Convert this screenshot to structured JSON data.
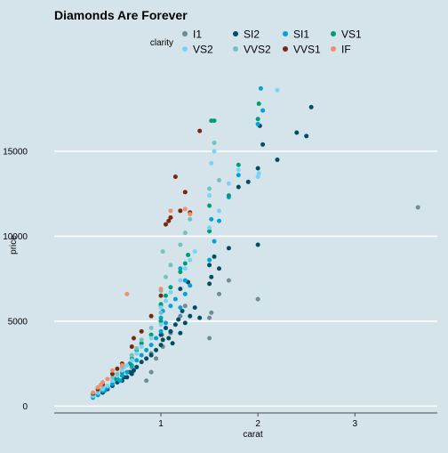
{
  "chart_data": {
    "type": "scatter",
    "title": "Diamonds Are Forever",
    "xlabel": "carat",
    "ylabel": "price",
    "xlim": [
      -0.1,
      3.85
    ],
    "ylim": [
      -400,
      19400
    ],
    "x_ticks": [
      1,
      2,
      3
    ],
    "y_ticks": [
      0,
      5000,
      10000,
      15000
    ],
    "grid": "horizontal major lines only",
    "legend_title": "clarity",
    "legend_position": "top",
    "series": [
      {
        "name": "I1",
        "color": "#6e8c95",
        "points": [
          [
            0.7,
            2300
          ],
          [
            0.8,
            3700
          ],
          [
            0.9,
            3100
          ],
          [
            0.95,
            2800
          ],
          [
            1.0,
            5000
          ],
          [
            1.0,
            5900
          ],
          [
            1.01,
            4200
          ],
          [
            1.02,
            3500
          ],
          [
            1.1,
            4300
          ],
          [
            1.2,
            5300
          ],
          [
            1.25,
            5900
          ],
          [
            1.5,
            4000
          ],
          [
            1.5,
            5200
          ],
          [
            1.52,
            5500
          ],
          [
            1.6,
            6600
          ],
          [
            1.7,
            7400
          ],
          [
            2.0,
            6300
          ],
          [
            3.65,
            11700
          ],
          [
            0.85,
            1500
          ],
          [
            0.9,
            2000
          ]
        ]
      },
      {
        "name": "SI2",
        "color": "#014d64",
        "points": [
          [
            0.3,
            600
          ],
          [
            0.35,
            700
          ],
          [
            0.4,
            800
          ],
          [
            0.45,
            1000
          ],
          [
            0.5,
            1200
          ],
          [
            0.55,
            1400
          ],
          [
            0.6,
            1500
          ],
          [
            0.65,
            1700
          ],
          [
            0.7,
            1900
          ],
          [
            0.72,
            2100
          ],
          [
            0.75,
            2300
          ],
          [
            0.8,
            2600
          ],
          [
            0.85,
            2800
          ],
          [
            0.9,
            3000
          ],
          [
            0.95,
            3300
          ],
          [
            1.0,
            3600
          ],
          [
            1.0,
            4200
          ],
          [
            1.02,
            3900
          ],
          [
            1.05,
            4600
          ],
          [
            1.08,
            4000
          ],
          [
            1.1,
            4400
          ],
          [
            1.12,
            3700
          ],
          [
            1.15,
            4800
          ],
          [
            1.18,
            5100
          ],
          [
            1.2,
            4300
          ],
          [
            1.22,
            5600
          ],
          [
            1.25,
            4900
          ],
          [
            1.3,
            5300
          ],
          [
            1.35,
            5800
          ],
          [
            1.5,
            7200
          ],
          [
            1.5,
            8300
          ],
          [
            1.52,
            7600
          ],
          [
            1.55,
            8800
          ],
          [
            1.6,
            8100
          ],
          [
            1.7,
            9300
          ],
          [
            1.8,
            12900
          ],
          [
            1.9,
            13200
          ],
          [
            2.0,
            9500
          ],
          [
            2.0,
            14000
          ],
          [
            2.02,
            16500
          ],
          [
            2.05,
            15400
          ],
          [
            2.2,
            14500
          ],
          [
            2.4,
            16100
          ],
          [
            2.5,
            15900
          ],
          [
            2.55,
            17600
          ],
          [
            1.2,
            6900
          ],
          [
            1.28,
            7300
          ],
          [
            1.4,
            5200
          ],
          [
            0.62,
            1700
          ],
          [
            0.68,
            2000
          ]
        ]
      },
      {
        "name": "SI1",
        "color": "#01a2d9",
        "points": [
          [
            0.3,
            500
          ],
          [
            0.35,
            650
          ],
          [
            0.4,
            900
          ],
          [
            0.45,
            1100
          ],
          [
            0.5,
            1300
          ],
          [
            0.55,
            1600
          ],
          [
            0.6,
            1800
          ],
          [
            0.65,
            2000
          ],
          [
            0.7,
            2400
          ],
          [
            0.75,
            2700
          ],
          [
            0.8,
            3000
          ],
          [
            0.85,
            3300
          ],
          [
            0.9,
            3600
          ],
          [
            0.95,
            4000
          ],
          [
            1.0,
            4400
          ],
          [
            1.0,
            5200
          ],
          [
            1.02,
            5600
          ],
          [
            1.05,
            4900
          ],
          [
            1.1,
            5900
          ],
          [
            1.15,
            6300
          ],
          [
            1.2,
            5800
          ],
          [
            1.25,
            6600
          ],
          [
            1.3,
            7100
          ],
          [
            1.5,
            8600
          ],
          [
            1.5,
            10300
          ],
          [
            1.52,
            11000
          ],
          [
            1.55,
            9700
          ],
          [
            1.6,
            10900
          ],
          [
            1.7,
            12300
          ],
          [
            1.8,
            13600
          ],
          [
            2.0,
            16600
          ],
          [
            2.03,
            18700
          ],
          [
            2.05,
            17400
          ],
          [
            1.2,
            8100
          ],
          [
            1.25,
            7400
          ],
          [
            0.58,
            1500
          ],
          [
            0.42,
            900
          ]
        ]
      },
      {
        "name": "VS1",
        "color": "#009e73",
        "points": [
          [
            0.3,
            650
          ],
          [
            0.4,
            1000
          ],
          [
            0.5,
            1500
          ],
          [
            0.6,
            2000
          ],
          [
            0.7,
            2800
          ],
          [
            0.75,
            3300
          ],
          [
            0.8,
            3700
          ],
          [
            0.9,
            4200
          ],
          [
            1.0,
            5000
          ],
          [
            1.0,
            6000
          ],
          [
            1.05,
            6500
          ],
          [
            1.1,
            7000
          ],
          [
            1.2,
            7900
          ],
          [
            1.25,
            8400
          ],
          [
            1.5,
            10300
          ],
          [
            1.5,
            11800
          ],
          [
            1.52,
            16800
          ],
          [
            1.55,
            16800
          ],
          [
            1.7,
            12400
          ],
          [
            1.8,
            14200
          ],
          [
            2.0,
            16900
          ],
          [
            2.01,
            17800
          ],
          [
            1.28,
            8900
          ],
          [
            0.68,
            2500
          ],
          [
            0.52,
            1600
          ]
        ]
      },
      {
        "name": "VS2",
        "color": "#7ad2f6",
        "points": [
          [
            0.3,
            600
          ],
          [
            0.35,
            800
          ],
          [
            0.4,
            1000
          ],
          [
            0.45,
            1200
          ],
          [
            0.5,
            1500
          ],
          [
            0.55,
            1800
          ],
          [
            0.6,
            2100
          ],
          [
            0.65,
            2400
          ],
          [
            0.7,
            2700
          ],
          [
            0.75,
            3100
          ],
          [
            0.8,
            3500
          ],
          [
            0.9,
            4000
          ],
          [
            1.0,
            4800
          ],
          [
            1.0,
            5800
          ],
          [
            1.05,
            6200
          ],
          [
            1.1,
            6700
          ],
          [
            1.2,
            7400
          ],
          [
            1.25,
            8100
          ],
          [
            1.3,
            8600
          ],
          [
            1.5,
            10500
          ],
          [
            1.5,
            12400
          ],
          [
            1.52,
            14300
          ],
          [
            1.55,
            15000
          ],
          [
            1.6,
            11500
          ],
          [
            1.7,
            13100
          ],
          [
            1.8,
            13900
          ],
          [
            2.0,
            13500
          ],
          [
            2.01,
            13700
          ],
          [
            2.2,
            18600
          ],
          [
            1.35,
            9100
          ],
          [
            0.62,
            2300
          ]
        ]
      },
      {
        "name": "VVS2",
        "color": "#76c0c1",
        "points": [
          [
            0.3,
            700
          ],
          [
            0.35,
            900
          ],
          [
            0.4,
            1200
          ],
          [
            0.5,
            1700
          ],
          [
            0.6,
            2300
          ],
          [
            0.7,
            3000
          ],
          [
            0.75,
            3400
          ],
          [
            0.8,
            3900
          ],
          [
            0.9,
            4600
          ],
          [
            1.0,
            5500
          ],
          [
            1.0,
            6800
          ],
          [
            1.05,
            7600
          ],
          [
            1.1,
            8300
          ],
          [
            1.2,
            9500
          ],
          [
            1.25,
            10200
          ],
          [
            1.3,
            11000
          ],
          [
            1.5,
            12800
          ],
          [
            1.55,
            15500
          ],
          [
            1.6,
            13300
          ],
          [
            1.02,
            9100
          ],
          [
            0.55,
            1900
          ]
        ]
      },
      {
        "name": "VVS1",
        "color": "#7c260b",
        "points": [
          [
            0.3,
            750
          ],
          [
            0.35,
            1000
          ],
          [
            0.4,
            1300
          ],
          [
            0.5,
            1900
          ],
          [
            0.55,
            2200
          ],
          [
            0.6,
            2500
          ],
          [
            0.7,
            3500
          ],
          [
            0.72,
            4000
          ],
          [
            0.8,
            4400
          ],
          [
            0.9,
            5300
          ],
          [
            1.0,
            6500
          ],
          [
            1.05,
            10700
          ],
          [
            1.1,
            11100
          ],
          [
            1.2,
            11500
          ],
          [
            1.25,
            12600
          ],
          [
            1.3,
            11400
          ],
          [
            1.4,
            16200
          ],
          [
            1.15,
            13500
          ],
          [
            1.08,
            10900
          ]
        ]
      },
      {
        "name": "IF",
        "color": "#ee8f71",
        "points": [
          [
            0.3,
            800
          ],
          [
            0.35,
            1100
          ],
          [
            0.4,
            1400
          ],
          [
            0.45,
            1600
          ],
          [
            0.5,
            2100
          ],
          [
            0.6,
            2400
          ],
          [
            0.65,
            6600
          ],
          [
            1.0,
            6900
          ],
          [
            1.1,
            11500
          ],
          [
            1.25,
            11600
          ],
          [
            1.3,
            11300
          ],
          [
            0.38,
            1250
          ]
        ]
      }
    ]
  }
}
